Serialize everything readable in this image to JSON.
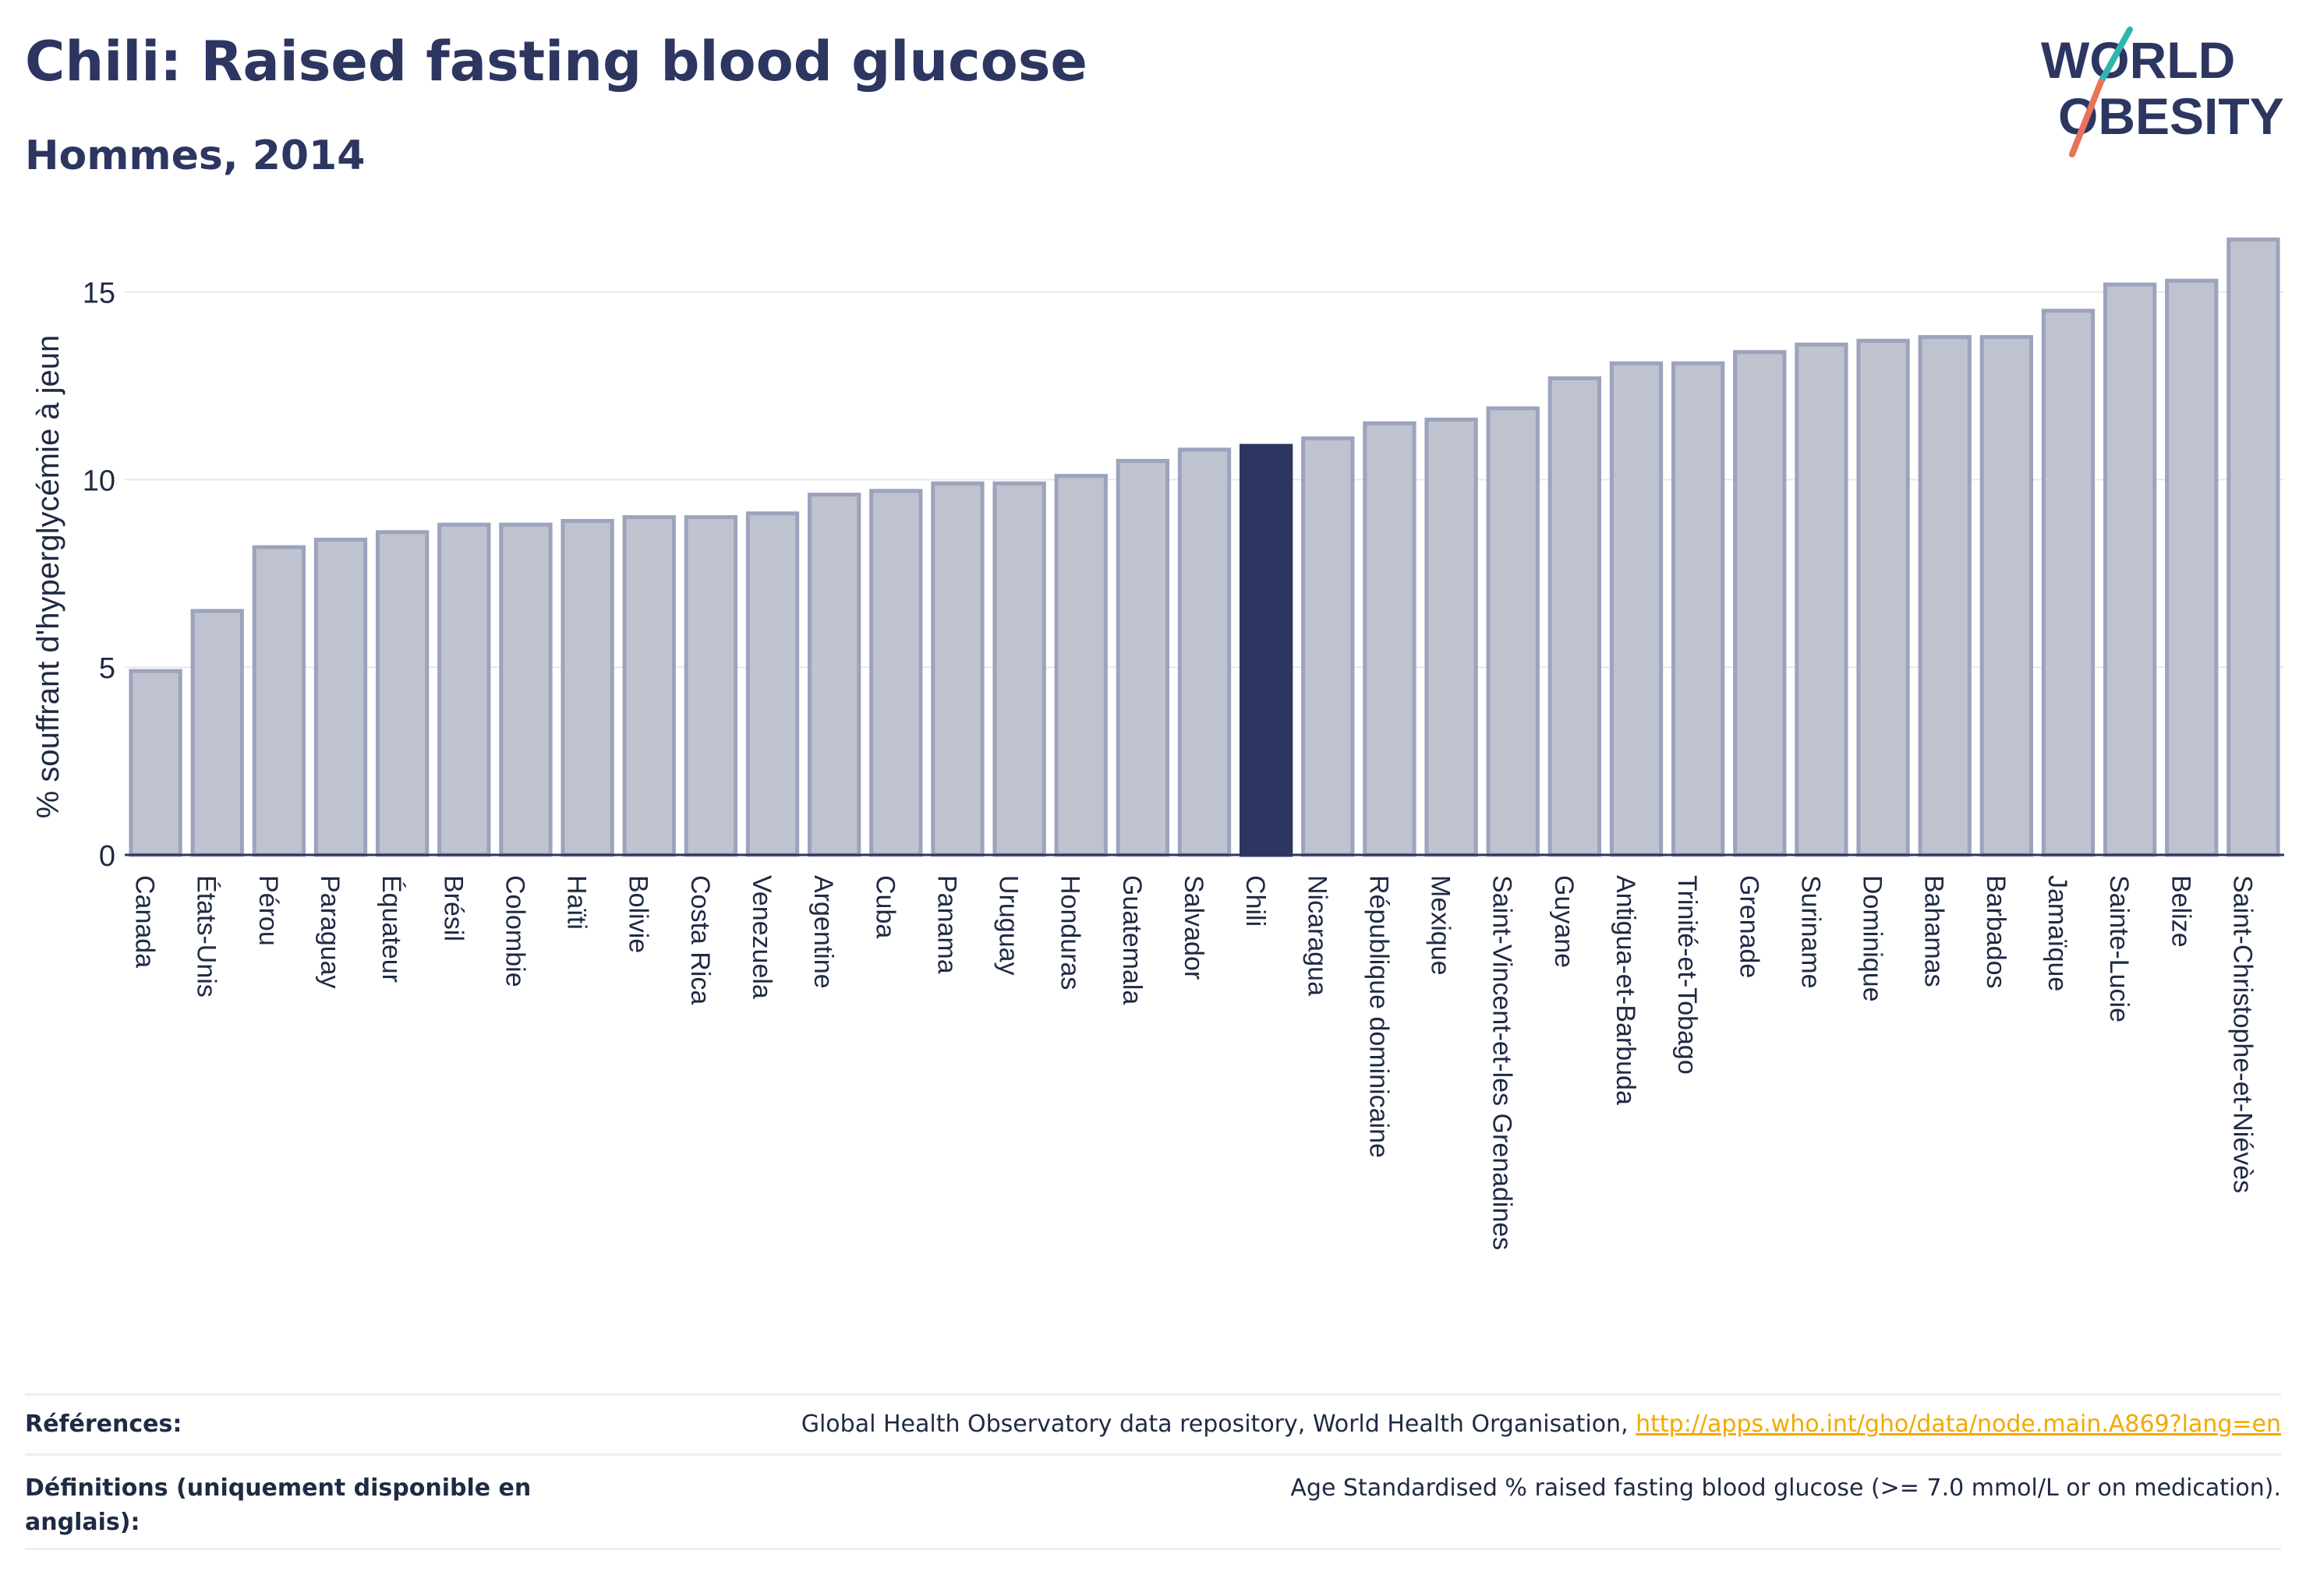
{
  "header": {
    "title": "Chili: Raised fasting blood glucose",
    "subtitle": "Hommes, 2014"
  },
  "logo": {
    "line1": "WORLD",
    "line2": "OBESITY"
  },
  "chart_data": {
    "type": "bar",
    "ylabel": "% souffrant d'hyperglycémie à jeun",
    "xlabel": "",
    "ylim": [
      0,
      16.8
    ],
    "yticks": [
      0,
      5,
      10,
      15
    ],
    "grid": true,
    "highlight": "Chili",
    "colors": {
      "bar": "#bfc3cf",
      "bar_border": "#9ca3bd",
      "highlight": "#2d3661",
      "grid": "#e6e8ee",
      "axis": "#2d3661"
    },
    "categories": [
      "Canada",
      "États-Unis",
      "Pérou",
      "Paraguay",
      "Équateur",
      "Brésil",
      "Colombie",
      "Haïti",
      "Bolivie",
      "Costa Rica",
      "Venezuela",
      "Argentine",
      "Cuba",
      "Panama",
      "Uruguay",
      "Honduras",
      "Guatemala",
      "Salvador",
      "Chili",
      "Nicaragua",
      "République dominicaine",
      "Mexique",
      "Saint-Vincent-et-les Grenadines",
      "Guyane",
      "Antigua-et-Barbuda",
      "Trinité-et-Tobago",
      "Grenade",
      "Suriname",
      "Dominique",
      "Bahamas",
      "Barbados",
      "Jamaïque",
      "Sainte-Lucie",
      "Belize",
      "Saint-Christophe-et-Niévès"
    ],
    "values": [
      4.9,
      6.5,
      8.2,
      8.4,
      8.6,
      8.8,
      8.8,
      8.9,
      9.0,
      9.0,
      9.1,
      9.6,
      9.7,
      9.9,
      9.9,
      10.1,
      10.5,
      10.8,
      10.9,
      11.1,
      11.5,
      11.6,
      11.9,
      12.7,
      13.1,
      13.1,
      13.4,
      13.6,
      13.7,
      13.8,
      13.8,
      14.5,
      15.2,
      15.3,
      16.4
    ]
  },
  "footer": {
    "references_label": "Références:",
    "references_text": "Global Health Observatory data repository, World Health Organisation, ",
    "references_link": "http://apps.who.int/gho/data/node.main.A869?lang=en",
    "definitions_label": "Définitions (uniquement disponible en anglais):",
    "definitions_text": "Age Standardised % raised fasting blood glucose (>= 7.0 mmol/L or on medication)."
  }
}
